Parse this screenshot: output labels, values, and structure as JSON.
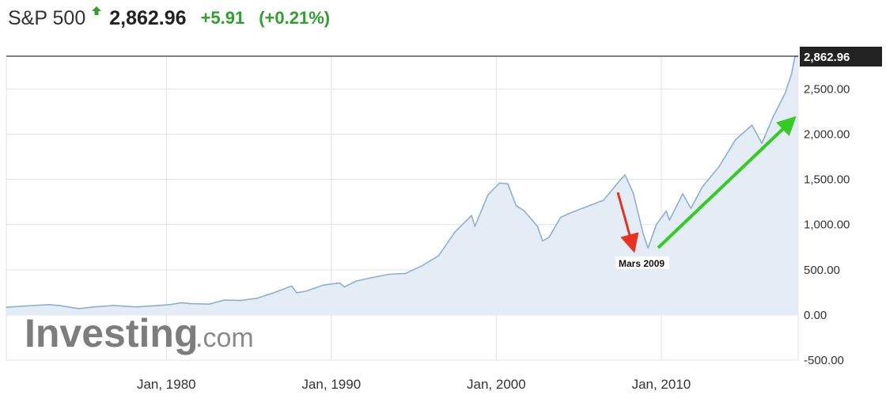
{
  "header": {
    "index_name": "S&P 500",
    "last_price": "2,862.96",
    "change_abs": "+5.91",
    "change_pct": "(+0.21%)",
    "direction_icon": "arrow-up-icon"
  },
  "watermark": {
    "brand": "Investing",
    "suffix": ".com"
  },
  "annotation": {
    "label": "Mars 2009"
  },
  "colors": {
    "up_green": "#2ea02e",
    "line": "#8cb0d3",
    "area_fill": "#e4edf5",
    "grid": "#e3e3e3",
    "last_price_box": "#222222",
    "annotation_red_arrow": "#e8321e",
    "annotation_green_arrow": "#33cc22"
  },
  "chart_data": {
    "type": "area",
    "title": "",
    "xlabel": "",
    "ylabel": "",
    "xlim": [
      1970.3,
      2018.3
    ],
    "ylim": [
      -500,
      2862.96
    ],
    "x_ticks": [
      1980,
      1990,
      2000,
      2010
    ],
    "x_tick_labels": [
      "Jan, 1980",
      "Jan, 1990",
      "Jan, 2000",
      "Jan, 2010"
    ],
    "y_ticks": [
      -500,
      0,
      500,
      1000,
      1500,
      2000,
      2500
    ],
    "y_tick_labels": [
      "-500.00",
      "0.00",
      "500.00",
      "1,000.00",
      "1,500.00",
      "2,000.00",
      "2,500.00"
    ],
    "last_value": 2862.96,
    "last_value_label": "2,862.96",
    "grid": true,
    "series": [
      {
        "x": [
          1970.3,
          1971.5,
          1972.9,
          1973.5,
          1974.7,
          1975.5,
          1976.8,
          1977.9,
          1978.3,
          1979.5,
          1980.2,
          1980.9,
          1981.5,
          1982.6,
          1983.5,
          1984.5,
          1985.5,
          1986.5,
          1987.6,
          1987.9,
          1988.5,
          1989.5,
          1990.5,
          1990.8,
          1991.5,
          1992.5,
          1993.5,
          1994.5,
          1995.5,
          1996.5,
          1997.5,
          1998.5,
          1998.7,
          1999.5,
          2000.2,
          2000.7,
          2001.2,
          2001.7,
          2002.5,
          2002.8,
          2003.2,
          2003.9,
          2004.5,
          2005.5,
          2006.5,
          2007.5,
          2007.8,
          2008.3,
          2008.9,
          2009.2,
          2009.7,
          2010.3,
          2010.5,
          2011.3,
          2011.8,
          2012.5,
          2013.5,
          2014.5,
          2015.5,
          2016.1,
          2016.8,
          2017.5,
          2017.9,
          2018.1,
          2018.3
        ],
        "y": [
          85,
          100,
          115,
          105,
          70,
          88,
          105,
          92,
          90,
          105,
          115,
          135,
          125,
          120,
          165,
          160,
          185,
          245,
          320,
          245,
          265,
          330,
          355,
          310,
          375,
          415,
          450,
          460,
          545,
          655,
          920,
          1100,
          980,
          1330,
          1460,
          1450,
          1210,
          1150,
          980,
          820,
          860,
          1080,
          1130,
          1200,
          1270,
          1490,
          1550,
          1350,
          900,
          740,
          1000,
          1150,
          1050,
          1340,
          1180,
          1420,
          1640,
          1940,
          2100,
          1900,
          2200,
          2450,
          2670,
          2860,
          2862.96
        ]
      }
    ]
  }
}
